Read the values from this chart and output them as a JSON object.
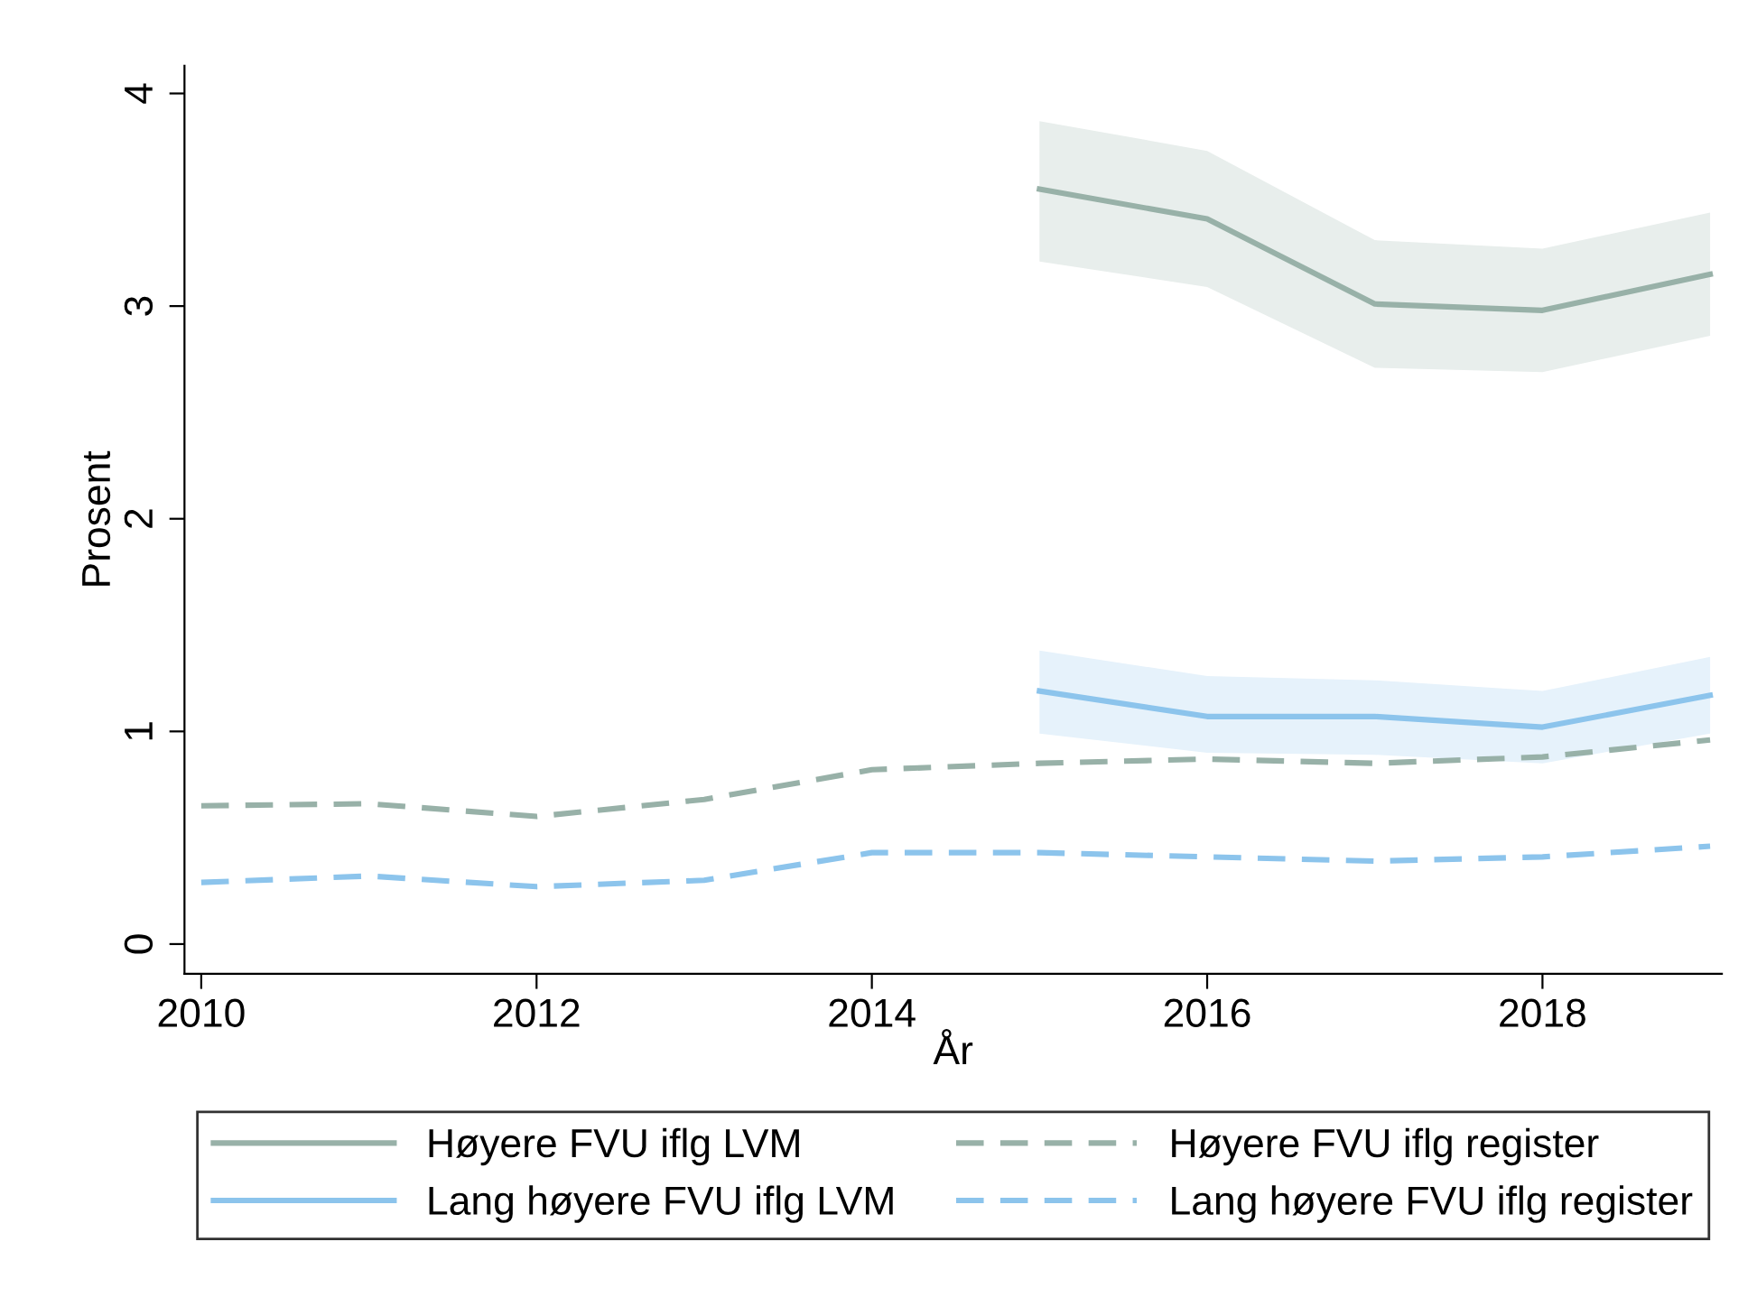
{
  "chart_data": {
    "type": "line",
    "xlabel": "År",
    "ylabel": "Prosent",
    "x": [
      2010,
      2011,
      2012,
      2013,
      2014,
      2015,
      2016,
      2017,
      2018,
      2019
    ],
    "xlim": [
      2009.9,
      2019.07
    ],
    "xticks": [
      2010,
      2012,
      2014,
      2016,
      2018
    ],
    "ylim": [
      -0.14,
      4.13
    ],
    "yticks": [
      0,
      1,
      2,
      3,
      4
    ],
    "grid": false,
    "legend": "bottom",
    "marker": "none",
    "series": [
      {
        "name": "Høyere FVU iflg LVM",
        "color": "#98b1a8",
        "line_style": "solid",
        "values": [
          null,
          null,
          null,
          null,
          null,
          3.55,
          3.41,
          3.01,
          2.98,
          3.15
        ],
        "lower": [
          null,
          null,
          null,
          null,
          null,
          3.21,
          3.09,
          2.71,
          2.69,
          2.86
        ],
        "upper": [
          null,
          null,
          null,
          null,
          null,
          3.87,
          3.73,
          3.31,
          3.27,
          3.44
        ]
      },
      {
        "name": "Lang høyere FVU iflg LVM",
        "color": "#8cc4ec",
        "line_style": "solid",
        "values": [
          null,
          null,
          null,
          null,
          null,
          1.19,
          1.07,
          1.07,
          1.02,
          1.17
        ],
        "lower": [
          null,
          null,
          null,
          null,
          null,
          0.99,
          0.9,
          0.89,
          0.85,
          0.99
        ],
        "upper": [
          null,
          null,
          null,
          null,
          null,
          1.38,
          1.26,
          1.24,
          1.19,
          1.35
        ]
      },
      {
        "name": "Høyere FVU iflg register",
        "color": "#98b1a8",
        "line_style": "dashed",
        "values": [
          0.65,
          0.66,
          0.6,
          0.68,
          0.82,
          0.85,
          0.87,
          0.85,
          0.88,
          0.96
        ]
      },
      {
        "name": "Lang høyere FVU iflg register",
        "color": "#8cc4ec",
        "line_style": "dashed",
        "values": [
          0.29,
          0.32,
          0.27,
          0.3,
          0.43,
          0.43,
          0.41,
          0.39,
          0.41,
          0.46
        ]
      }
    ]
  }
}
